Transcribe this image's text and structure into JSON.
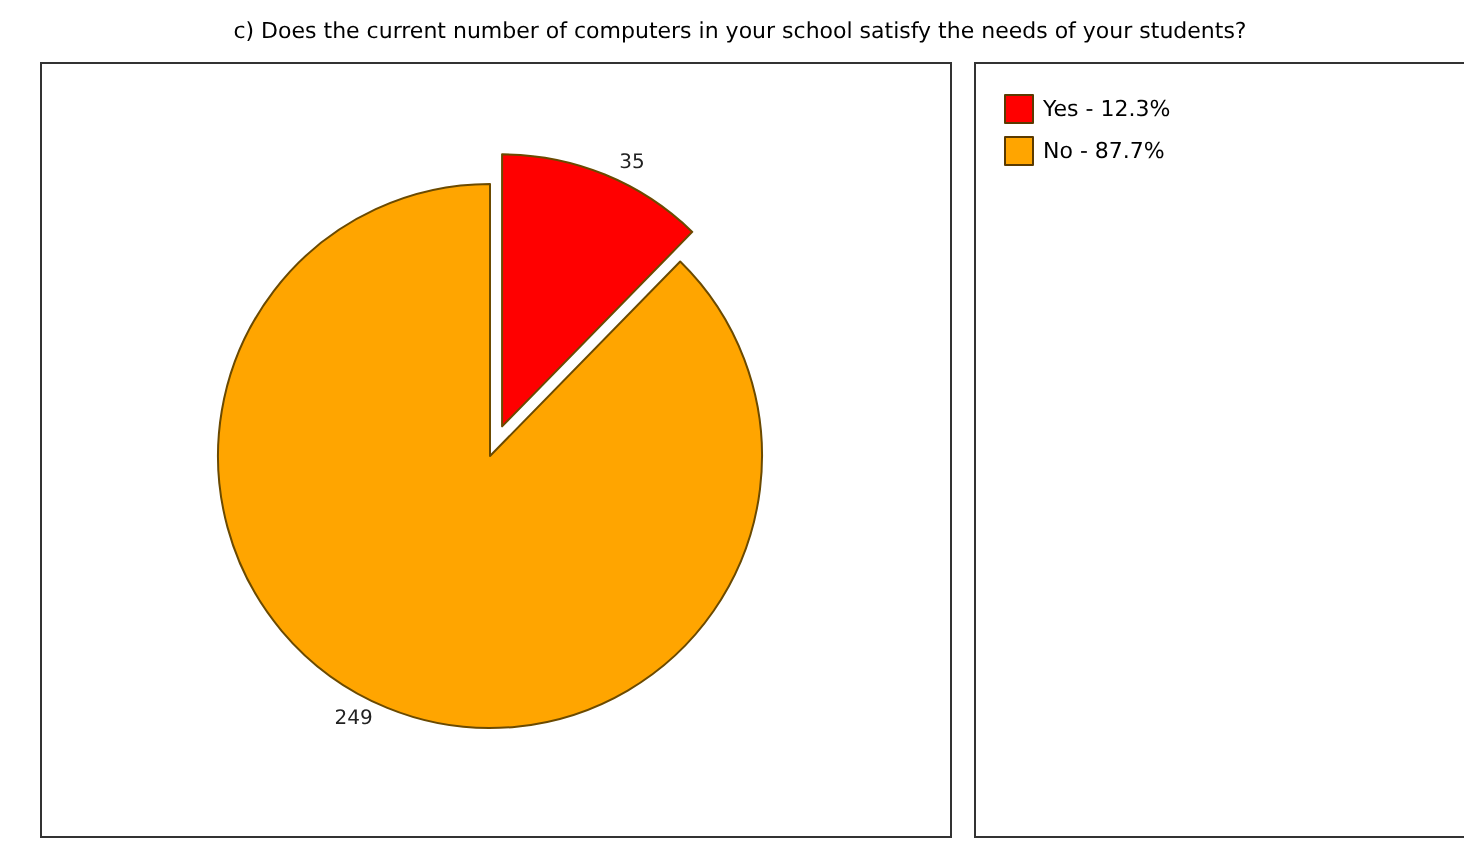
{
  "chart_data": {
    "type": "pie",
    "title": "c) Does the current number of computers in your school satisfy the needs of your students?",
    "categories": [
      "Yes - 12.3%",
      "No - 87.7%"
    ],
    "values": [
      35,
      249
    ],
    "colors": [
      "#ff0000",
      "#ffa500"
    ],
    "data_labels": true,
    "legend": "top right"
  }
}
